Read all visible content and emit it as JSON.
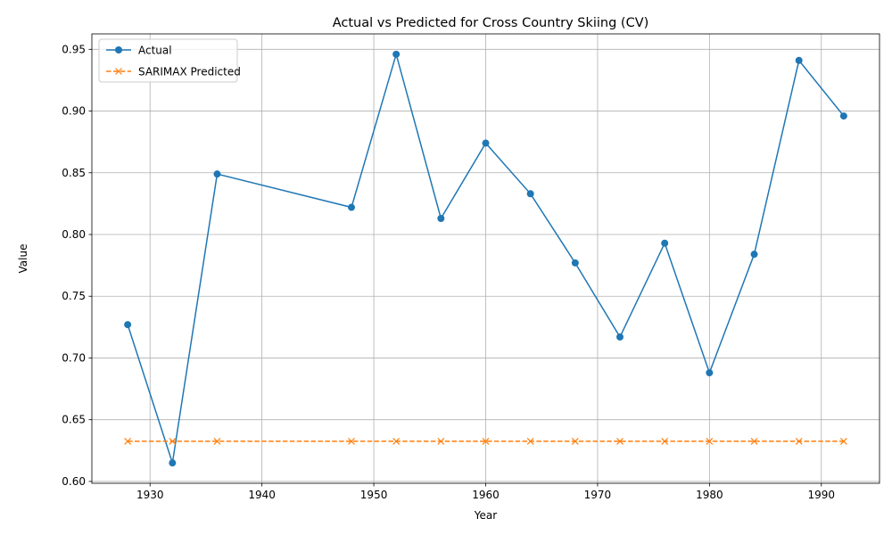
{
  "chart_data": {
    "type": "line",
    "title": "Actual vs Predicted for Cross Country Skiing (CV)",
    "xlabel": "Year",
    "ylabel": "Value",
    "xlim": [
      1924.8,
      1995.2
    ],
    "ylim": [
      0.5985,
      0.9625
    ],
    "xticks": [
      1930,
      1940,
      1950,
      1960,
      1970,
      1980,
      1990
    ],
    "yticks": [
      0.6,
      0.65,
      0.7,
      0.75,
      0.8,
      0.85,
      0.9,
      0.95
    ],
    "ytick_labels": [
      "0.60",
      "0.65",
      "0.70",
      "0.75",
      "0.80",
      "0.85",
      "0.90",
      "0.95"
    ],
    "grid": true,
    "legend_position": "top-left",
    "x": [
      1928,
      1932,
      1936,
      1948,
      1952,
      1956,
      1960,
      1964,
      1968,
      1972,
      1976,
      1980,
      1984,
      1988,
      1992
    ],
    "series": [
      {
        "name": "Actual",
        "color": "#1f77b4",
        "marker": "circle",
        "linestyle": "solid",
        "values": [
          0.727,
          0.615,
          0.849,
          0.822,
          0.946,
          0.813,
          0.874,
          0.833,
          0.777,
          0.717,
          0.793,
          0.688,
          0.784,
          0.941,
          0.896
        ]
      },
      {
        "name": "SARIMAX Predicted",
        "color": "#ff7f0e",
        "marker": "x",
        "linestyle": "dashed",
        "values": [
          0.6325,
          0.6325,
          0.6325,
          0.6325,
          0.6325,
          0.6325,
          0.6325,
          0.6325,
          0.6325,
          0.6325,
          0.6325,
          0.6325,
          0.6325,
          0.6325,
          0.6325
        ]
      }
    ]
  }
}
